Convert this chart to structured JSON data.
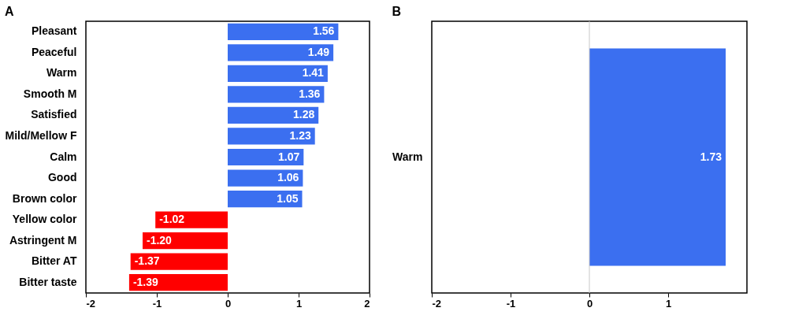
{
  "chart_data": [
    {
      "type": "bar",
      "title": "A",
      "orientation": "horizontal",
      "categories": [
        "Pleasant",
        "Peaceful",
        "Warm",
        "Smooth M",
        "Satisfied",
        "Mild/Mellow F",
        "Calm",
        "Good",
        "Brown color",
        "Yellow color",
        "Astringent M",
        "Bitter AT",
        "Bitter taste"
      ],
      "values": [
        1.56,
        1.49,
        1.41,
        1.36,
        1.28,
        1.23,
        1.07,
        1.06,
        1.05,
        -1.02,
        -1.2,
        -1.37,
        -1.39
      ],
      "colors": [
        "#3b6ff0",
        "#3b6ff0",
        "#3b6ff0",
        "#3b6ff0",
        "#3b6ff0",
        "#3b6ff0",
        "#3b6ff0",
        "#3b6ff0",
        "#3b6ff0",
        "#ff0000",
        "#ff0000",
        "#ff0000",
        "#ff0000"
      ],
      "value_labels": [
        "1.56",
        "1.49",
        "1.41",
        "1.36",
        "1.28",
        "1.23",
        "1.07",
        "1.06",
        "1.05",
        "-1.02",
        "-1.20",
        "-1.37",
        "-1.39"
      ],
      "xlim": [
        -2,
        2
      ],
      "xticks": [
        -2,
        -1,
        0,
        1,
        2
      ],
      "grid": false
    },
    {
      "type": "bar",
      "title": "B",
      "orientation": "horizontal",
      "categories": [
        "Warm"
      ],
      "values": [
        1.73
      ],
      "colors": [
        "#3b6ff0"
      ],
      "xlim": [
        -2,
        2
      ],
      "xticks": [
        -2,
        -1,
        0,
        1
      ],
      "data_labels": true,
      "grid": false,
      "ref_lines": [
        {
          "axis": "x",
          "value": 0,
          "color": "#c8c8c8"
        }
      ]
    }
  ]
}
